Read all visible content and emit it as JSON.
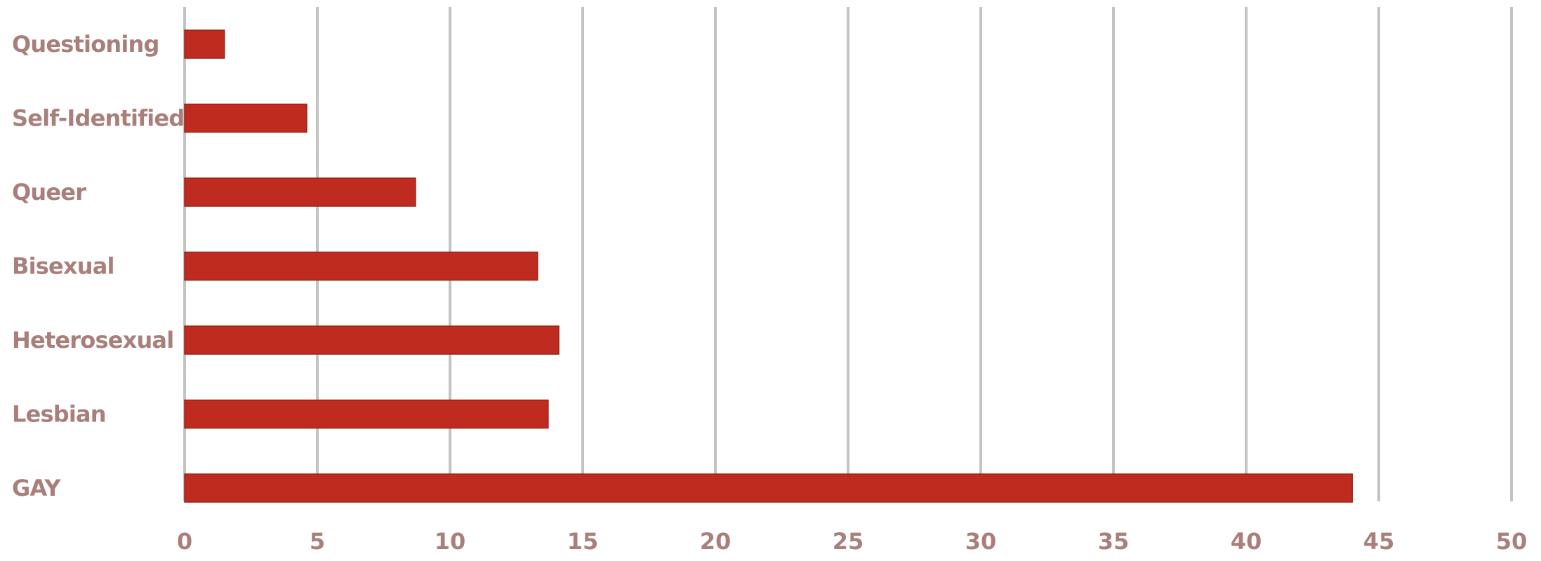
{
  "chart_data": {
    "type": "bar",
    "orientation": "horizontal",
    "categories": [
      "Questioning",
      "Self-Identified",
      "Queer",
      "Bisexual",
      "Heterosexual",
      "Lesbian",
      "GAY"
    ],
    "values": [
      1.5,
      4.6,
      8.7,
      13.3,
      14.1,
      13.7,
      44.0
    ],
    "x_ticks": [
      "0",
      "5",
      "10",
      "15",
      "20",
      "25",
      "30",
      "35",
      "40",
      "45",
      "50"
    ],
    "xlim": [
      0,
      50
    ],
    "grid": true,
    "title": "",
    "xlabel": "",
    "ylabel": ""
  },
  "colors": {
    "bar": "#bf2c1f",
    "bar_edge": "#9b2217",
    "grid": "#c3c3c3",
    "label": "#a97f7b",
    "background": "#ffffff"
  }
}
